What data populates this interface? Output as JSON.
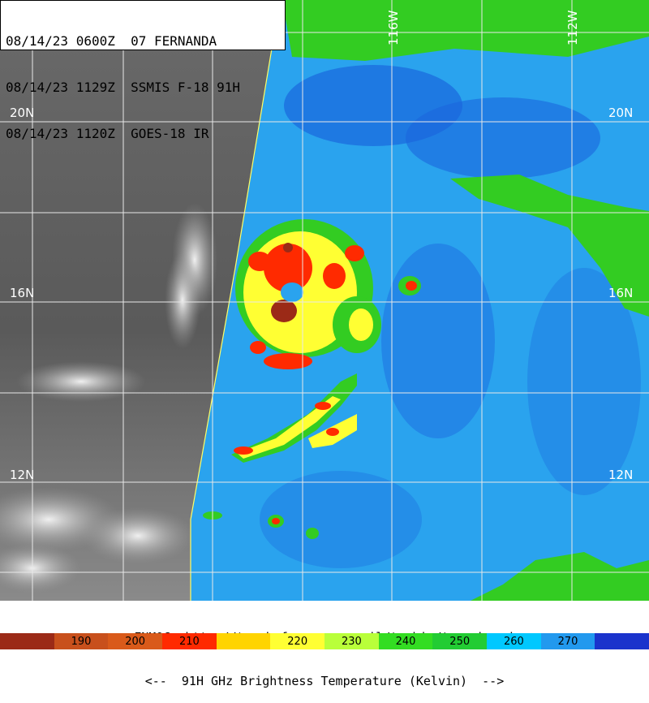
{
  "header": {
    "line1": "08/14/23 0600Z  07 FERNANDA",
    "line2": "08/14/23 1129Z  SSMIS F-18 91H",
    "line3": "08/14/23 1120Z  GOES-18 IR"
  },
  "grid": {
    "lat_labels": [
      "20N",
      "16N",
      "12N"
    ],
    "lon_labels": [
      "116W",
      "112W"
    ]
  },
  "footer": {
    "source": "FNMOC  http://tcweb.fnmoc.navy.mil/tc-bin/tc_web.cgi",
    "legend_title": "<--  91H GHz Brightness Temperature (Kelvin)  -->"
  },
  "colorbar": {
    "labels": [
      "",
      "190",
      "200",
      "210",
      "",
      "220",
      "230",
      "240",
      "250",
      "260",
      "270",
      ""
    ],
    "colors": [
      "#9b2a17",
      "#c8501c",
      "#d95a1a",
      "#ff2a00",
      "#ffd400",
      "#ffff33",
      "#b9ff3a",
      "#33dd22",
      "#22cc33",
      "#00c8ff",
      "#2299ee",
      "#1a33cc"
    ]
  }
}
